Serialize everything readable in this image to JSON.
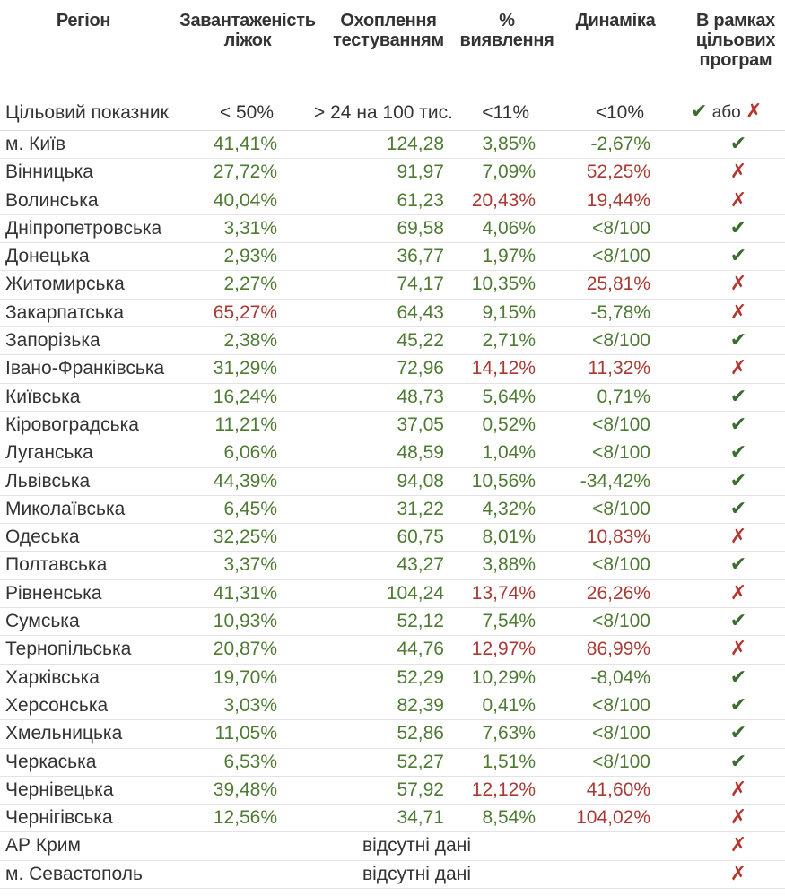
{
  "header": {
    "region": "Регіон",
    "beds_line1": "Завантаженість",
    "beds_line2": "ліжок",
    "testing_line1": "Охоплення",
    "testing_line2": "тестуванням",
    "detection_line1": "%",
    "detection_line2": "виявлення",
    "dynamics": "Динаміка",
    "programs_line1": "В рамках",
    "programs_line2": "цільових",
    "programs_line3": "програм"
  },
  "target": {
    "label": "Цільовий показник",
    "beds": "< 50%",
    "testing": "> 24 на 100 тис.",
    "detection": "<11%",
    "dynamics": "<10%",
    "legend_ok_icon": "check-icon",
    "legend_or": "або",
    "legend_no_icon": "cross-icon"
  },
  "colors": {
    "good": "#4f7a34",
    "bad": "#a83a34",
    "check": "#3c6b2e",
    "cross": "#b5352e"
  },
  "rows": [
    {
      "region": "м. Київ",
      "beds": "41,41%",
      "beds_s": "good",
      "testing": "124,28",
      "testing_s": "good",
      "detection": "3,85%",
      "detection_s": "good",
      "dynamics": "-2,67%",
      "dynamics_s": "good",
      "in_target": true
    },
    {
      "region": "Вінницька",
      "beds": "27,72%",
      "beds_s": "good",
      "testing": "91,97",
      "testing_s": "good",
      "detection": "7,09%",
      "detection_s": "good",
      "dynamics": "52,25%",
      "dynamics_s": "bad",
      "in_target": false
    },
    {
      "region": "Волинська",
      "beds": "40,04%",
      "beds_s": "good",
      "testing": "61,23",
      "testing_s": "good",
      "detection": "20,43%",
      "detection_s": "bad",
      "dynamics": "19,44%",
      "dynamics_s": "bad",
      "in_target": false
    },
    {
      "region": "Дніпропетровська",
      "beds": "3,31%",
      "beds_s": "good",
      "testing": "69,58",
      "testing_s": "good",
      "detection": "4,06%",
      "detection_s": "good",
      "dynamics": "<8/100",
      "dynamics_s": "good",
      "in_target": true
    },
    {
      "region": "Донецька",
      "beds": "2,93%",
      "beds_s": "good",
      "testing": "36,77",
      "testing_s": "good",
      "detection": "1,97%",
      "detection_s": "good",
      "dynamics": "<8/100",
      "dynamics_s": "good",
      "in_target": true
    },
    {
      "region": "Житомирська",
      "beds": "2,27%",
      "beds_s": "good",
      "testing": "74,17",
      "testing_s": "good",
      "detection": "10,35%",
      "detection_s": "good",
      "dynamics": "25,81%",
      "dynamics_s": "bad",
      "in_target": false
    },
    {
      "region": "Закарпатська",
      "beds": "65,27%",
      "beds_s": "bad",
      "testing": "64,43",
      "testing_s": "good",
      "detection": "9,15%",
      "detection_s": "good",
      "dynamics": "-5,78%",
      "dynamics_s": "good",
      "in_target": false
    },
    {
      "region": "Запорізька",
      "beds": "2,38%",
      "beds_s": "good",
      "testing": "45,22",
      "testing_s": "good",
      "detection": "2,71%",
      "detection_s": "good",
      "dynamics": "<8/100",
      "dynamics_s": "good",
      "in_target": true
    },
    {
      "region": "Івано-Франківська",
      "beds": "31,29%",
      "beds_s": "good",
      "testing": "72,96",
      "testing_s": "good",
      "detection": "14,12%",
      "detection_s": "bad",
      "dynamics": "11,32%",
      "dynamics_s": "bad",
      "in_target": false
    },
    {
      "region": "Київська",
      "beds": "16,24%",
      "beds_s": "good",
      "testing": "48,73",
      "testing_s": "good",
      "detection": "5,64%",
      "detection_s": "good",
      "dynamics": "0,71%",
      "dynamics_s": "good",
      "in_target": true
    },
    {
      "region": "Кіровоградська",
      "beds": "11,21%",
      "beds_s": "good",
      "testing": "37,05",
      "testing_s": "good",
      "detection": "0,52%",
      "detection_s": "good",
      "dynamics": "<8/100",
      "dynamics_s": "good",
      "in_target": true
    },
    {
      "region": "Луганська",
      "beds": "6,06%",
      "beds_s": "good",
      "testing": "48,59",
      "testing_s": "good",
      "detection": "1,04%",
      "detection_s": "good",
      "dynamics": "<8/100",
      "dynamics_s": "good",
      "in_target": true
    },
    {
      "region": "Львівська",
      "beds": "44,39%",
      "beds_s": "good",
      "testing": "94,08",
      "testing_s": "good",
      "detection": "10,56%",
      "detection_s": "good",
      "dynamics": "-34,42%",
      "dynamics_s": "good",
      "in_target": true
    },
    {
      "region": "Миколаївська",
      "beds": "6,45%",
      "beds_s": "good",
      "testing": "31,22",
      "testing_s": "good",
      "detection": "4,32%",
      "detection_s": "good",
      "dynamics": "<8/100",
      "dynamics_s": "good",
      "in_target": true
    },
    {
      "region": "Одеська",
      "beds": "32,25%",
      "beds_s": "good",
      "testing": "60,75",
      "testing_s": "good",
      "detection": "8,01%",
      "detection_s": "good",
      "dynamics": "10,83%",
      "dynamics_s": "bad",
      "in_target": false
    },
    {
      "region": "Полтавська",
      "beds": "3,37%",
      "beds_s": "good",
      "testing": "43,27",
      "testing_s": "good",
      "detection": "3,88%",
      "detection_s": "good",
      "dynamics": "<8/100",
      "dynamics_s": "good",
      "in_target": true
    },
    {
      "region": "Рівненська",
      "beds": "41,31%",
      "beds_s": "good",
      "testing": "104,24",
      "testing_s": "good",
      "detection": "13,74%",
      "detection_s": "bad",
      "dynamics": "26,26%",
      "dynamics_s": "bad",
      "in_target": false
    },
    {
      "region": "Сумська",
      "beds": "10,93%",
      "beds_s": "good",
      "testing": "52,12",
      "testing_s": "good",
      "detection": "7,54%",
      "detection_s": "good",
      "dynamics": "<8/100",
      "dynamics_s": "good",
      "in_target": true
    },
    {
      "region": "Тернопільська",
      "beds": "20,87%",
      "beds_s": "good",
      "testing": "44,76",
      "testing_s": "good",
      "detection": "12,97%",
      "detection_s": "bad",
      "dynamics": "86,99%",
      "dynamics_s": "bad",
      "in_target": false
    },
    {
      "region": "Харківська",
      "beds": "19,70%",
      "beds_s": "good",
      "testing": "52,29",
      "testing_s": "good",
      "detection": "10,29%",
      "detection_s": "good",
      "dynamics": "-8,04%",
      "dynamics_s": "good",
      "in_target": true
    },
    {
      "region": "Херсонська",
      "beds": "3,03%",
      "beds_s": "good",
      "testing": "82,39",
      "testing_s": "good",
      "detection": "0,41%",
      "detection_s": "good",
      "dynamics": "<8/100",
      "dynamics_s": "good",
      "in_target": true
    },
    {
      "region": "Хмельницька",
      "beds": "11,05%",
      "beds_s": "good",
      "testing": "52,86",
      "testing_s": "good",
      "detection": "7,63%",
      "detection_s": "good",
      "dynamics": "<8/100",
      "dynamics_s": "good",
      "in_target": true
    },
    {
      "region": "Черкаська",
      "beds": "6,53%",
      "beds_s": "good",
      "testing": "52,27",
      "testing_s": "good",
      "detection": "1,51%",
      "detection_s": "good",
      "dynamics": "<8/100",
      "dynamics_s": "good",
      "in_target": true
    },
    {
      "region": "Чернівецька",
      "beds": "39,48%",
      "beds_s": "good",
      "testing": "57,92",
      "testing_s": "good",
      "detection": "12,12%",
      "detection_s": "bad",
      "dynamics": "41,60%",
      "dynamics_s": "bad",
      "in_target": false
    },
    {
      "region": "Чернігівська",
      "beds": "12,56%",
      "beds_s": "good",
      "testing": "34,71",
      "testing_s": "good",
      "detection": "8,54%",
      "detection_s": "good",
      "dynamics": "104,02%",
      "dynamics_s": "bad",
      "in_target": false
    },
    {
      "region": "АР Крим",
      "note": "відсутні дані",
      "in_target": false
    },
    {
      "region": "м. Севастополь",
      "note": "відсутні дані",
      "in_target": false
    }
  ]
}
